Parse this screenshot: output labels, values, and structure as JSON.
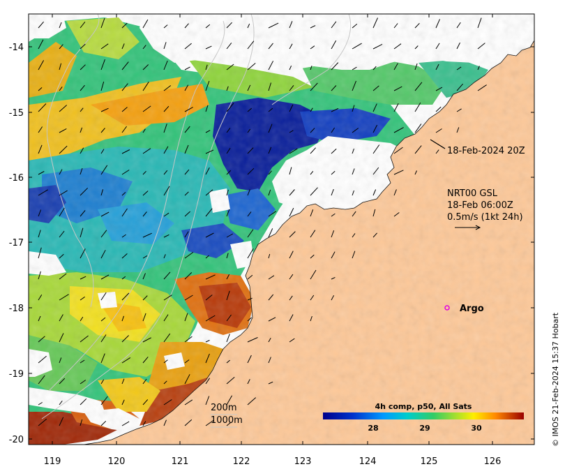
{
  "map": {
    "longitude_ticks": [
      "119",
      "120",
      "121",
      "122",
      "123",
      "124",
      "125",
      "126"
    ],
    "latitude_ticks": [
      "-14",
      "-15",
      "-16",
      "-17",
      "-18",
      "-19",
      "-20"
    ],
    "land_color": "#fdc898",
    "no_data_color": "#ffffff"
  },
  "annotations": {
    "track_time": "18-Feb-2024 20Z",
    "current_source": "NRT00 GSL",
    "current_time": "18-Feb 06:00Z",
    "current_scale": "0.5m/s (1kt 24h)",
    "argo_label": "Argo",
    "depth_200": "200m",
    "depth_1000": "1000m"
  },
  "colorbar": {
    "title": "4h comp, p50, All Sats",
    "ticks": [
      "28",
      "29",
      "30"
    ]
  },
  "credit": "© IMOS 21-Feb-2024 15:37 Hobart"
}
